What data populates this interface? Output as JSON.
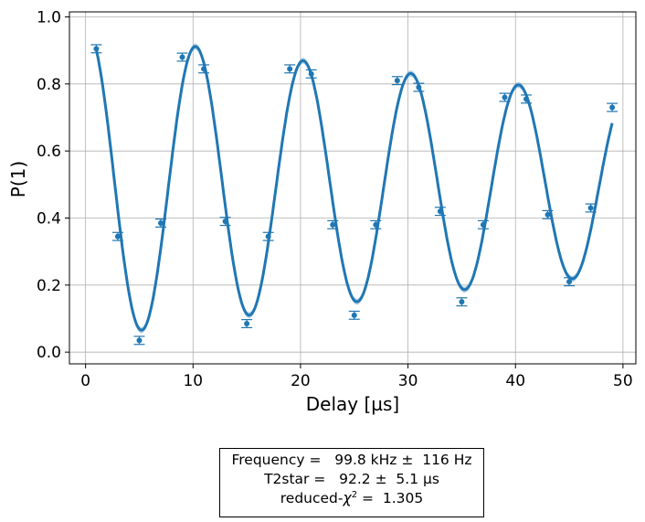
{
  "chart_data": {
    "type": "scatter",
    "xlabel": "Delay [µs]",
    "ylabel": "P(1)",
    "xlim": [
      -1.5,
      51.2
    ],
    "ylim": [
      -0.035,
      1.015
    ],
    "xticks": [
      0,
      10,
      20,
      30,
      40,
      50
    ],
    "yticks": [
      0.0,
      0.2,
      0.4,
      0.6,
      0.8,
      1.0
    ],
    "xtick_labels": [
      "0",
      "10",
      "20",
      "30",
      "40",
      "50"
    ],
    "ytick_labels": [
      "0.0",
      "0.2",
      "0.4",
      "0.6",
      "0.8",
      "1.0"
    ],
    "grid": true,
    "color": "#1f77b4",
    "series": [
      {
        "kind": "data-points-with-errorbars",
        "x": [
          1,
          3,
          5,
          7,
          9,
          11,
          13,
          15,
          17,
          19,
          21,
          23,
          25,
          27,
          29,
          31,
          33,
          35,
          37,
          39,
          41,
          43,
          45,
          47,
          49
        ],
        "y": [
          0.905,
          0.345,
          0.035,
          0.385,
          0.88,
          0.845,
          0.39,
          0.085,
          0.345,
          0.845,
          0.83,
          0.38,
          0.11,
          0.38,
          0.81,
          0.79,
          0.42,
          0.15,
          0.38,
          0.76,
          0.755,
          0.41,
          0.21,
          0.43,
          0.73
        ],
        "yerr": 0.012
      },
      {
        "kind": "fit-curve",
        "function": "0.5 + 0.46*exp(-t/T2star)*cos(2*pi*f*(t-0.22))",
        "frequency_MHz": 0.0998,
        "T2star_us": 92.2,
        "band": 0.009
      }
    ]
  },
  "fit_results": {
    "frequency_line": "Frequency =   99.8 kHz ±  116 Hz",
    "t2star_line": "T2star =   92.2 ±  5.1 µs",
    "chi_prefix": "reduced-",
    "chi_symbol": "χ",
    "chi_exponent": "2",
    "chi_value": " =  1.305"
  }
}
